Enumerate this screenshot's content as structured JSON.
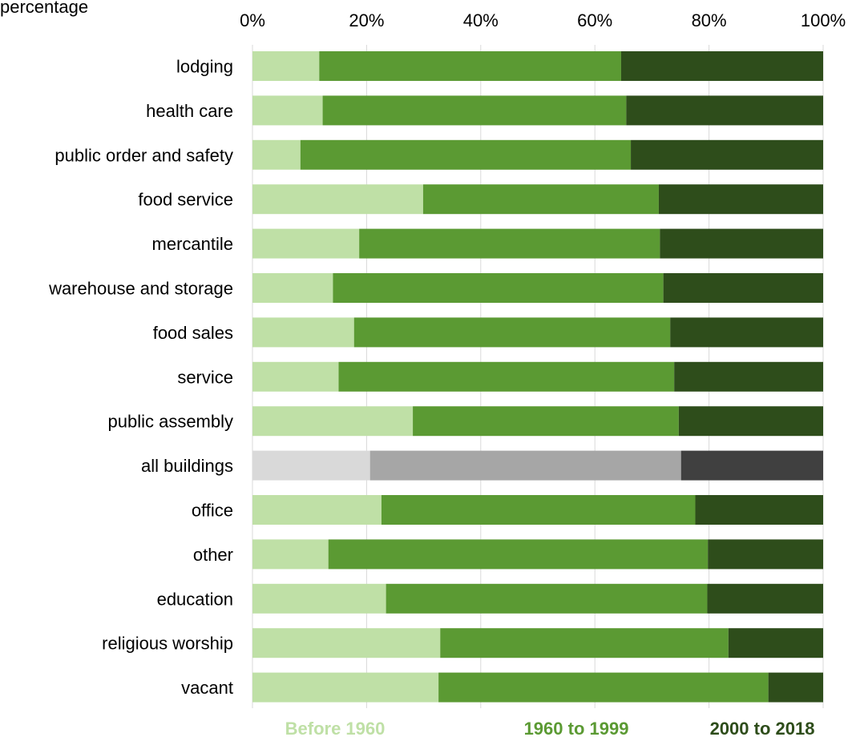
{
  "header": {
    "top_left_text": "percentage"
  },
  "chart_data": {
    "type": "bar",
    "orientation": "horizontal",
    "stacked": "percent",
    "categories": [
      "lodging",
      "health care",
      "public order and safety",
      "food service",
      "mercantile",
      "warehouse and storage",
      "food sales",
      "service",
      "public assembly",
      "all buildings",
      "office",
      "other",
      "education",
      "religious worship",
      "vacant"
    ],
    "series": [
      {
        "name": "Before 1960",
        "color": "#bfe0a6",
        "values": [
          11.7,
          12.3,
          8.4,
          29.9,
          18.7,
          14.1,
          17.8,
          15.1,
          28.1,
          20.6,
          22.6,
          13.3,
          23.4,
          32.9,
          32.6
        ]
      },
      {
        "name": "1960 to 1999",
        "color": "#5b9a33",
        "values": [
          52.9,
          53.2,
          57.9,
          41.3,
          52.7,
          57.9,
          55.4,
          58.8,
          46.6,
          54.5,
          55.0,
          66.5,
          56.3,
          50.5,
          57.8
        ]
      },
      {
        "name": "2000 to 2018",
        "color": "#2e4d1b",
        "values": [
          35.4,
          34.5,
          33.7,
          28.8,
          28.6,
          28.0,
          26.8,
          26.1,
          25.3,
          24.9,
          22.4,
          20.2,
          20.3,
          16.6,
          9.6
        ]
      }
    ],
    "highlight": {
      "category": "all buildings",
      "colors": [
        "#d9d9d9",
        "#a6a6a6",
        "#404040"
      ]
    },
    "xlim": [
      0,
      100
    ],
    "x_ticks": [
      "0%",
      "20%",
      "40%",
      "60%",
      "80%",
      "100%"
    ],
    "x_axis_position": "top",
    "grid": true,
    "legend": "bottom"
  }
}
